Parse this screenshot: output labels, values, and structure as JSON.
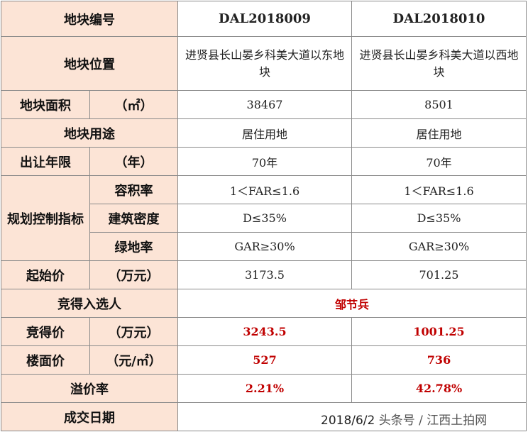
{
  "table": {
    "rows": {
      "plot_no": {
        "label": "地块编号",
        "values": [
          "DAL2018009",
          "DAL2018010"
        ]
      },
      "location": {
        "label": "地块位置",
        "values": [
          "进贤县长山晏乡科美大道以东地块",
          "进贤县长山晏乡科美大道以西地块"
        ]
      },
      "area": {
        "label": "地块面积",
        "unit": "（㎡）",
        "values": [
          "38467",
          "8501"
        ]
      },
      "usage": {
        "label": "地块用途",
        "values": [
          "居住用地",
          "居住用地"
        ]
      },
      "term": {
        "label": "出让年限",
        "unit": "（年）",
        "values": [
          "70年",
          "70年"
        ]
      },
      "planning": {
        "label": "规划控制指标",
        "far": {
          "label": "容积率",
          "values": [
            "1＜FAR≤1.6",
            "1＜FAR≤1.6"
          ]
        },
        "density": {
          "label": "建筑密度",
          "values": [
            "D≤35%",
            "D≤35%"
          ]
        },
        "green": {
          "label": "绿地率",
          "values": [
            "GAR≥30%",
            "GAR≥30%"
          ]
        }
      },
      "start_price": {
        "label": "起始价",
        "unit": "（万元）",
        "values": [
          "3173.5",
          "701.25"
        ]
      },
      "bidder": {
        "label": "竞得入选人",
        "value": "邹节兵"
      },
      "win_price": {
        "label": "竞得价",
        "unit": "（万元）",
        "values": [
          "3243.5",
          "1001.25"
        ]
      },
      "floor_price": {
        "label": "楼面价",
        "unit": "（元/㎡）",
        "values": [
          "527",
          "736"
        ]
      },
      "premium": {
        "label": "溢价率",
        "values": [
          "2.21%",
          "42.78%"
        ]
      },
      "deal_date": {
        "label": "成交日期",
        "value": "2018/6/2",
        "watermark": "头条号 / 江西土拍网"
      }
    }
  },
  "colors": {
    "header_bg": "#fce4d6",
    "highlight": "#c00000",
    "border": "#8a8a8a"
  }
}
